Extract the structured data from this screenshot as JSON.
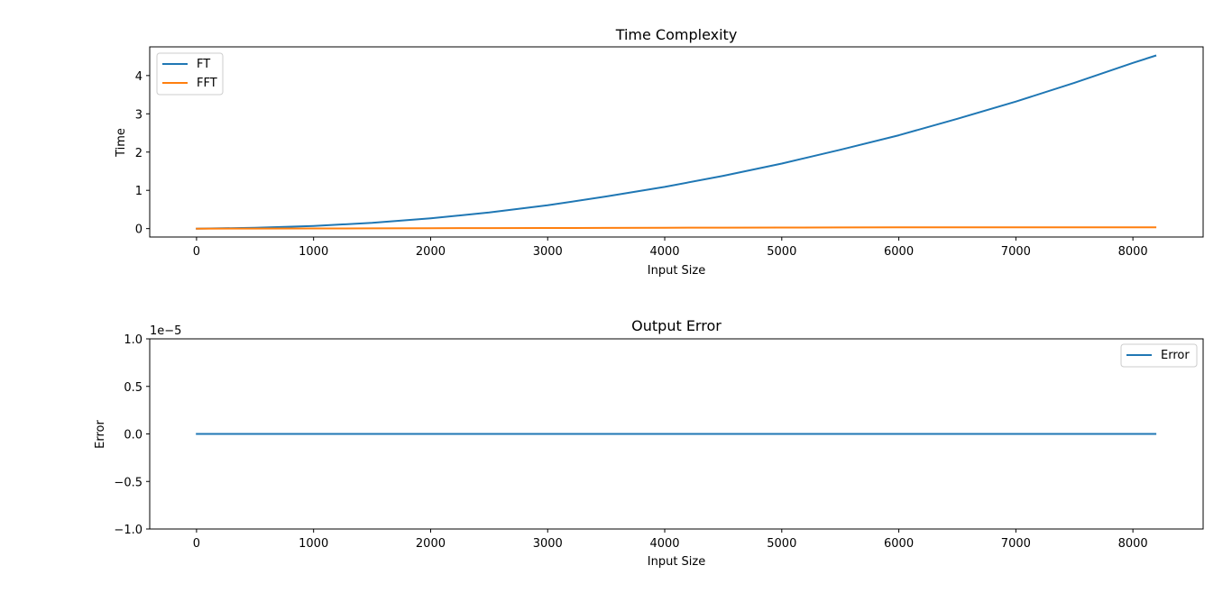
{
  "chart_data": [
    {
      "type": "line",
      "title": "Time Complexity",
      "xlabel": "Input Size",
      "ylabel": "Time",
      "xlim": [
        -400,
        8600
      ],
      "ylim": [
        -0.22,
        4.75
      ],
      "xticks": [
        0,
        1000,
        2000,
        3000,
        4000,
        5000,
        6000,
        7000,
        8000
      ],
      "xtick_labels": [
        "0",
        "1000",
        "2000",
        "3000",
        "4000",
        "5000",
        "6000",
        "7000",
        "8000"
      ],
      "yticks": [
        0,
        1,
        2,
        3,
        4
      ],
      "ytick_labels": [
        "0",
        "1",
        "2",
        "3",
        "4"
      ],
      "grid": false,
      "legend": "upper-left",
      "series": [
        {
          "name": "FT",
          "color": "#1f77b4",
          "x": [
            2,
            500,
            1000,
            1500,
            2000,
            2500,
            3000,
            3500,
            4000,
            4500,
            5000,
            5500,
            6000,
            6500,
            7000,
            7500,
            8000,
            8192
          ],
          "y": [
            0.0,
            0.02,
            0.07,
            0.15,
            0.27,
            0.42,
            0.61,
            0.84,
            1.09,
            1.38,
            1.7,
            2.06,
            2.44,
            2.87,
            3.32,
            3.81,
            4.33,
            4.52
          ]
        },
        {
          "name": "FFT",
          "color": "#ff7f0e",
          "x": [
            2,
            500,
            1000,
            1500,
            2000,
            2500,
            3000,
            3500,
            4000,
            4500,
            5000,
            5500,
            6000,
            6500,
            7000,
            7500,
            8000,
            8192
          ],
          "y": [
            0.0,
            0.002,
            0.004,
            0.007,
            0.01,
            0.013,
            0.016,
            0.019,
            0.022,
            0.025,
            0.027,
            0.029,
            0.031,
            0.033,
            0.034,
            0.035,
            0.035,
            0.035
          ]
        }
      ]
    },
    {
      "type": "line",
      "title": "Output Error",
      "xlabel": "Input Size",
      "ylabel": "Error",
      "scale_label": "1e−5",
      "xlim": [
        -400,
        8600
      ],
      "ylim": [
        -1.0,
        1.0
      ],
      "xticks": [
        0,
        1000,
        2000,
        3000,
        4000,
        5000,
        6000,
        7000,
        8000
      ],
      "xtick_labels": [
        "0",
        "1000",
        "2000",
        "3000",
        "4000",
        "5000",
        "6000",
        "7000",
        "8000"
      ],
      "yticks": [
        -1.0,
        -0.5,
        0.0,
        0.5,
        1.0
      ],
      "ytick_labels": [
        "−1.0",
        "−0.5",
        "0.0",
        "0.5",
        "1.0"
      ],
      "grid": false,
      "legend": "upper-right",
      "series": [
        {
          "name": "Error",
          "color": "#1f77b4",
          "x": [
            2,
            8192
          ],
          "y": [
            0.0,
            0.0
          ]
        }
      ]
    }
  ]
}
